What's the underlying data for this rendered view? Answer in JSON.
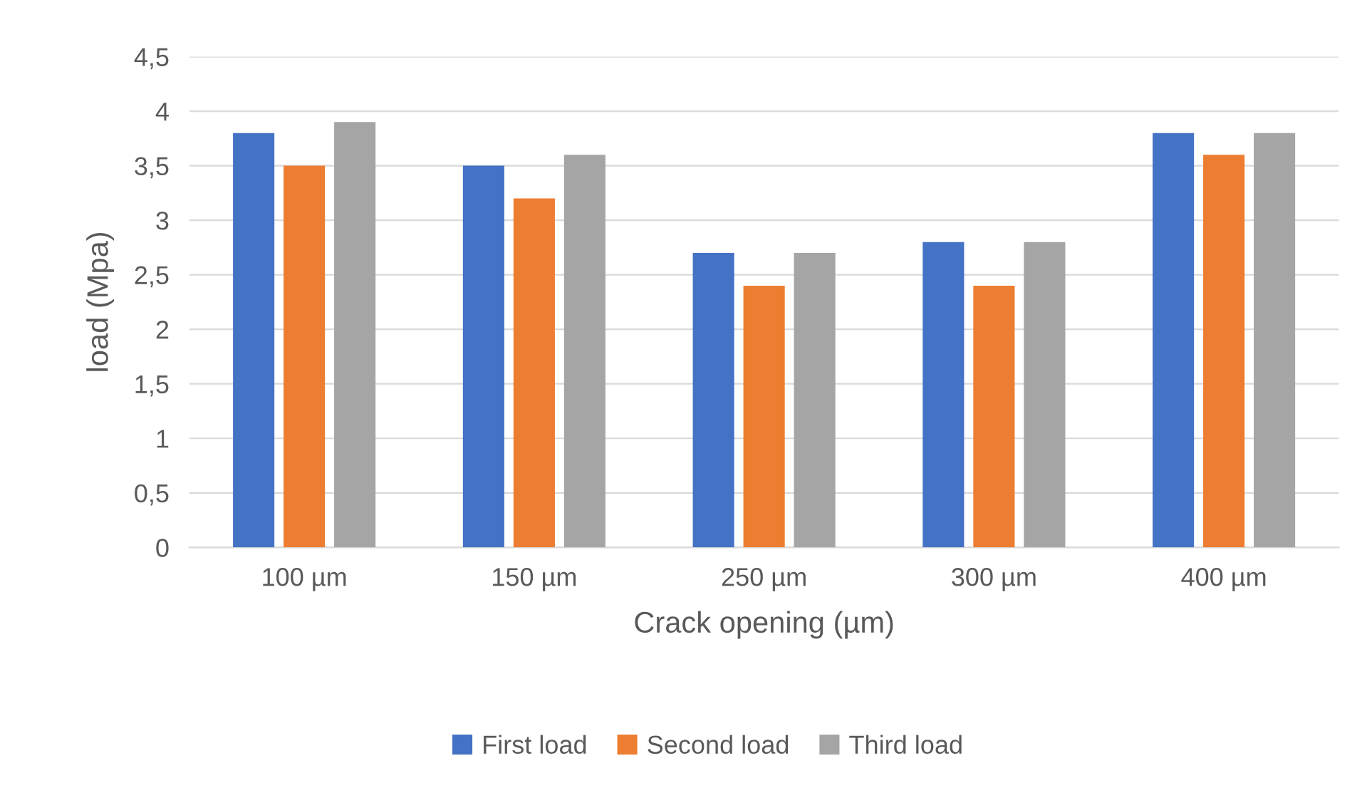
{
  "chart_data": {
    "type": "bar",
    "xlabel": "Crack opening (µm)",
    "ylabel": "load (Mpa)",
    "categories": [
      "100 µm",
      "150 µm",
      "250 µm",
      "300 µm",
      "400 µm"
    ],
    "series": [
      {
        "name": "First load",
        "color": "#4472c4",
        "values": [
          3.8,
          3.5,
          2.7,
          2.8,
          3.8
        ]
      },
      {
        "name": "Second load",
        "color": "#ed7d31",
        "values": [
          3.5,
          3.2,
          2.4,
          2.4,
          3.6
        ]
      },
      {
        "name": "Third load",
        "color": "#a5a5a5",
        "values": [
          3.9,
          3.6,
          2.7,
          2.8,
          3.8
        ]
      }
    ],
    "ylim": [
      0,
      4.5
    ],
    "yticks": [
      0,
      {
        "value": 0.5,
        "label": "0,5"
      },
      1,
      {
        "value": 1.5,
        "label": "1,5"
      },
      2,
      {
        "value": 2.5,
        "label": "2,5"
      },
      3,
      {
        "value": 3.5,
        "label": "3,5"
      },
      4,
      {
        "value": 4.5,
        "label": "4,5"
      }
    ],
    "grid": "y",
    "legend": "bottom"
  }
}
